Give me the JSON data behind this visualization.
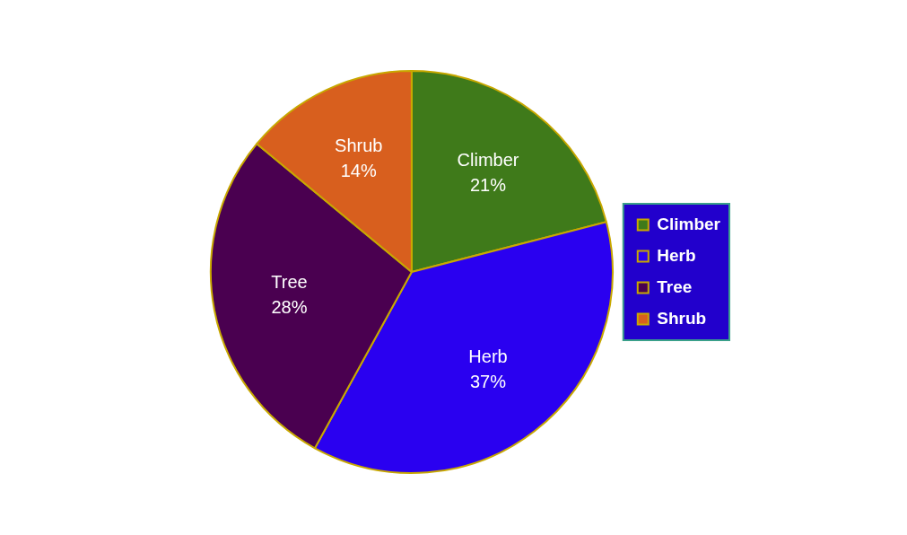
{
  "chart_data": {
    "type": "pie",
    "categories": [
      "Climber",
      "Herb",
      "Tree",
      "Shrub"
    ],
    "values": [
      21,
      37,
      28,
      14
    ],
    "colors": [
      "#3f7a1a",
      "#2a00f0",
      "#4a0050",
      "#d85f1e"
    ],
    "value_labels": [
      "21%",
      "37%",
      "28%",
      "14%"
    ],
    "legend": "right"
  }
}
